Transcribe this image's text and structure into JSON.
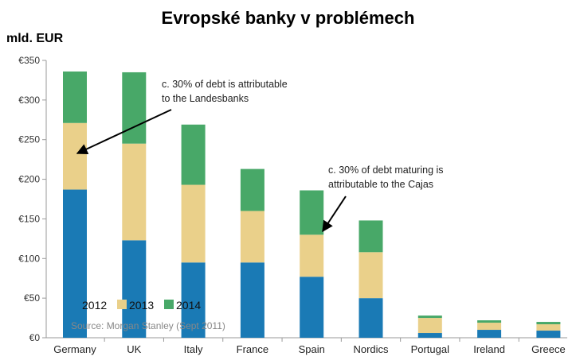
{
  "chart_data": {
    "type": "bar",
    "stacked": true,
    "title": "Evropské banky v problémech",
    "unit_label": "mld. EUR",
    "categories": [
      "Germany",
      "UK",
      "Italy",
      "France",
      "Spain",
      "Nordics",
      "Portugal",
      "Ireland",
      "Greece"
    ],
    "series": [
      {
        "name": "2012",
        "color": "#1a7ab5",
        "values": [
          187,
          123,
          95,
          95,
          77,
          50,
          6,
          10,
          9
        ]
      },
      {
        "name": "2013",
        "color": "#ead08a",
        "values": [
          84,
          122,
          98,
          65,
          53,
          58,
          19,
          9,
          8
        ]
      },
      {
        "name": "2014",
        "color": "#48a868",
        "values": [
          65,
          90,
          76,
          53,
          56,
          40,
          3,
          3,
          3
        ]
      }
    ],
    "ylim": [
      0,
      350
    ],
    "yticks": [
      {
        "v": 0,
        "label": "€0"
      },
      {
        "v": 50,
        "label": "€50"
      },
      {
        "v": 100,
        "label": "€100"
      },
      {
        "v": 150,
        "label": "€150"
      },
      {
        "v": 200,
        "label": "€200"
      },
      {
        "v": 250,
        "label": "€250"
      },
      {
        "v": 300,
        "label": "€300"
      },
      {
        "v": 350,
        "label": "€350"
      }
    ],
    "annotations": [
      {
        "lines": [
          "c. 30% of debt is attributable",
          "to the Landesbanks"
        ]
      },
      {
        "lines": [
          "c. 30% of debt maturing is",
          "attributable to the Cajas"
        ]
      }
    ],
    "source": "Source: Morgan Stanley (Sept 2011)",
    "legend_position": "bottom-left",
    "grid": false
  }
}
